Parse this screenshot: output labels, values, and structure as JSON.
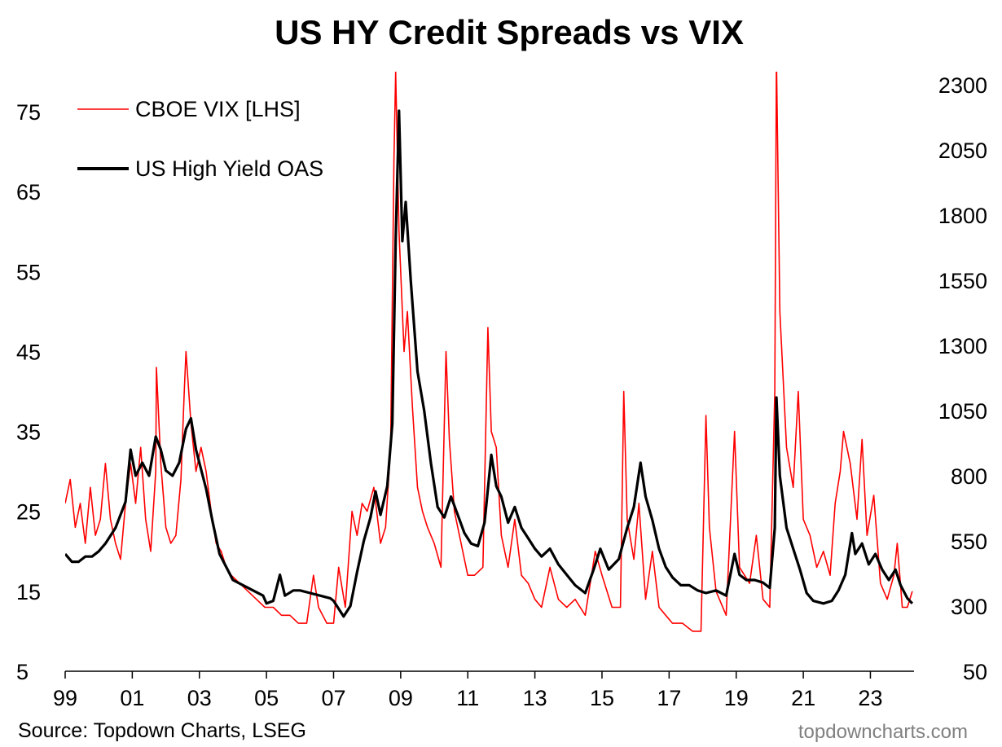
{
  "chart_data": {
    "type": "line",
    "title": "US HY Credit Spreads vs VIX",
    "x_tick_labels": [
      "99",
      "01",
      "03",
      "05",
      "07",
      "09",
      "11",
      "13",
      "15",
      "17",
      "19",
      "21",
      "23"
    ],
    "x_tick_years": [
      1999,
      2001,
      2003,
      2005,
      2007,
      2009,
      2011,
      2013,
      2015,
      2017,
      2019,
      2021,
      2023
    ],
    "x_range": [
      1999.0,
      2024.3
    ],
    "y_left": {
      "label": "",
      "ticks": [
        5,
        15,
        25,
        35,
        45,
        55,
        65,
        75
      ],
      "range": [
        5,
        80
      ]
    },
    "y_right": {
      "label": "",
      "ticks": [
        50,
        300,
        550,
        800,
        1050,
        1300,
        1550,
        1800,
        2050,
        2300
      ],
      "range": [
        50,
        2350
      ]
    },
    "series": [
      {
        "name": "CBOE VIX [LHS]",
        "axis": "left",
        "color": "#ff0000",
        "points": [
          [
            1999.0,
            26
          ],
          [
            1999.15,
            29
          ],
          [
            1999.3,
            23
          ],
          [
            1999.45,
            26
          ],
          [
            1999.6,
            21
          ],
          [
            1999.75,
            28
          ],
          [
            1999.9,
            22
          ],
          [
            2000.05,
            24
          ],
          [
            2000.2,
            31
          ],
          [
            2000.35,
            24
          ],
          [
            2000.5,
            21
          ],
          [
            2000.65,
            19
          ],
          [
            2000.8,
            26
          ],
          [
            2000.95,
            31
          ],
          [
            2001.1,
            26
          ],
          [
            2001.25,
            33
          ],
          [
            2001.4,
            24
          ],
          [
            2001.55,
            20
          ],
          [
            2001.7,
            30
          ],
          [
            2001.72,
            43
          ],
          [
            2001.85,
            31
          ],
          [
            2002.0,
            23
          ],
          [
            2002.15,
            21
          ],
          [
            2002.3,
            22
          ],
          [
            2002.45,
            29
          ],
          [
            2002.55,
            40
          ],
          [
            2002.6,
            45
          ],
          [
            2002.75,
            36
          ],
          [
            2002.9,
            30
          ],
          [
            2003.05,
            33
          ],
          [
            2003.2,
            30
          ],
          [
            2003.35,
            25
          ],
          [
            2003.5,
            21
          ],
          [
            2003.65,
            20
          ],
          [
            2003.8,
            18
          ],
          [
            2003.95,
            17
          ],
          [
            2004.2,
            16
          ],
          [
            2004.45,
            15
          ],
          [
            2004.7,
            14
          ],
          [
            2004.95,
            13
          ],
          [
            2005.2,
            13
          ],
          [
            2005.45,
            12
          ],
          [
            2005.7,
            12
          ],
          [
            2005.95,
            11
          ],
          [
            2006.2,
            11
          ],
          [
            2006.4,
            17
          ],
          [
            2006.55,
            13
          ],
          [
            2006.8,
            11
          ],
          [
            2007.0,
            11
          ],
          [
            2007.15,
            18
          ],
          [
            2007.35,
            13
          ],
          [
            2007.55,
            25
          ],
          [
            2007.7,
            22
          ],
          [
            2007.85,
            26
          ],
          [
            2008.0,
            25
          ],
          [
            2008.2,
            28
          ],
          [
            2008.4,
            21
          ],
          [
            2008.55,
            23
          ],
          [
            2008.7,
            33
          ],
          [
            2008.8,
            69
          ],
          [
            2008.85,
            80
          ],
          [
            2008.95,
            60
          ],
          [
            2009.1,
            45
          ],
          [
            2009.2,
            50
          ],
          [
            2009.35,
            38
          ],
          [
            2009.5,
            28
          ],
          [
            2009.65,
            25
          ],
          [
            2009.8,
            23
          ],
          [
            2010.0,
            21
          ],
          [
            2010.2,
            18
          ],
          [
            2010.35,
            45
          ],
          [
            2010.45,
            34
          ],
          [
            2010.6,
            25
          ],
          [
            2010.8,
            21
          ],
          [
            2011.0,
            17
          ],
          [
            2011.2,
            17
          ],
          [
            2011.45,
            18
          ],
          [
            2011.6,
            48
          ],
          [
            2011.7,
            35
          ],
          [
            2011.85,
            33
          ],
          [
            2012.0,
            22
          ],
          [
            2012.2,
            18
          ],
          [
            2012.4,
            24
          ],
          [
            2012.6,
            17
          ],
          [
            2012.8,
            16
          ],
          [
            2013.0,
            14
          ],
          [
            2013.2,
            13
          ],
          [
            2013.45,
            18
          ],
          [
            2013.7,
            14
          ],
          [
            2013.95,
            13
          ],
          [
            2014.2,
            14
          ],
          [
            2014.5,
            12
          ],
          [
            2014.8,
            20
          ],
          [
            2015.0,
            17
          ],
          [
            2015.3,
            13
          ],
          [
            2015.55,
            13
          ],
          [
            2015.65,
            40
          ],
          [
            2015.75,
            24
          ],
          [
            2015.95,
            19
          ],
          [
            2016.1,
            26
          ],
          [
            2016.3,
            14
          ],
          [
            2016.5,
            20
          ],
          [
            2016.7,
            13
          ],
          [
            2016.9,
            12
          ],
          [
            2017.1,
            11
          ],
          [
            2017.4,
            11
          ],
          [
            2017.7,
            10
          ],
          [
            2017.95,
            10
          ],
          [
            2018.1,
            37
          ],
          [
            2018.2,
            23
          ],
          [
            2018.4,
            15
          ],
          [
            2018.7,
            12
          ],
          [
            2018.95,
            35
          ],
          [
            2019.1,
            18
          ],
          [
            2019.4,
            16
          ],
          [
            2019.6,
            22
          ],
          [
            2019.8,
            14
          ],
          [
            2020.0,
            13
          ],
          [
            2020.15,
            40
          ],
          [
            2020.2,
            82
          ],
          [
            2020.3,
            50
          ],
          [
            2020.5,
            33
          ],
          [
            2020.7,
            28
          ],
          [
            2020.85,
            40
          ],
          [
            2021.0,
            24
          ],
          [
            2021.2,
            22
          ],
          [
            2021.4,
            18
          ],
          [
            2021.6,
            20
          ],
          [
            2021.8,
            17
          ],
          [
            2021.95,
            26
          ],
          [
            2022.1,
            30
          ],
          [
            2022.2,
            35
          ],
          [
            2022.4,
            31
          ],
          [
            2022.6,
            24
          ],
          [
            2022.75,
            34
          ],
          [
            2022.9,
            22
          ],
          [
            2023.1,
            27
          ],
          [
            2023.3,
            16
          ],
          [
            2023.5,
            14
          ],
          [
            2023.7,
            17
          ],
          [
            2023.8,
            21
          ],
          [
            2023.95,
            13
          ],
          [
            2024.1,
            13
          ],
          [
            2024.25,
            15
          ]
        ]
      },
      {
        "name": "US High Yield OAS",
        "axis": "right",
        "color": "#000000",
        "points": [
          [
            1999.0,
            500
          ],
          [
            1999.2,
            470
          ],
          [
            1999.4,
            470
          ],
          [
            1999.6,
            490
          ],
          [
            1999.8,
            490
          ],
          [
            2000.0,
            510
          ],
          [
            2000.2,
            540
          ],
          [
            2000.5,
            600
          ],
          [
            2000.8,
            700
          ],
          [
            2000.95,
            900
          ],
          [
            2001.1,
            800
          ],
          [
            2001.3,
            850
          ],
          [
            2001.5,
            800
          ],
          [
            2001.7,
            950
          ],
          [
            2001.85,
            900
          ],
          [
            2002.0,
            820
          ],
          [
            2002.2,
            800
          ],
          [
            2002.4,
            850
          ],
          [
            2002.6,
            980
          ],
          [
            2002.75,
            1020
          ],
          [
            2002.9,
            900
          ],
          [
            2003.0,
            850
          ],
          [
            2003.2,
            750
          ],
          [
            2003.4,
            620
          ],
          [
            2003.6,
            500
          ],
          [
            2003.8,
            450
          ],
          [
            2004.0,
            400
          ],
          [
            2004.3,
            380
          ],
          [
            2004.6,
            360
          ],
          [
            2004.9,
            340
          ],
          [
            2005.0,
            310
          ],
          [
            2005.2,
            320
          ],
          [
            2005.4,
            420
          ],
          [
            2005.55,
            340
          ],
          [
            2005.8,
            360
          ],
          [
            2006.0,
            360
          ],
          [
            2006.3,
            350
          ],
          [
            2006.6,
            340
          ],
          [
            2006.9,
            330
          ],
          [
            2007.0,
            320
          ],
          [
            2007.3,
            260
          ],
          [
            2007.5,
            300
          ],
          [
            2007.7,
            430
          ],
          [
            2007.9,
            550
          ],
          [
            2008.1,
            640
          ],
          [
            2008.25,
            740
          ],
          [
            2008.4,
            650
          ],
          [
            2008.6,
            760
          ],
          [
            2008.75,
            1000
          ],
          [
            2008.85,
            1700
          ],
          [
            2008.95,
            2200
          ],
          [
            2009.05,
            1700
          ],
          [
            2009.15,
            1850
          ],
          [
            2009.3,
            1550
          ],
          [
            2009.5,
            1200
          ],
          [
            2009.7,
            1050
          ],
          [
            2009.9,
            850
          ],
          [
            2010.1,
            680
          ],
          [
            2010.3,
            640
          ],
          [
            2010.5,
            720
          ],
          [
            2010.7,
            650
          ],
          [
            2010.9,
            580
          ],
          [
            2011.1,
            540
          ],
          [
            2011.3,
            530
          ],
          [
            2011.5,
            620
          ],
          [
            2011.7,
            880
          ],
          [
            2011.85,
            760
          ],
          [
            2012.0,
            720
          ],
          [
            2012.2,
            620
          ],
          [
            2012.4,
            680
          ],
          [
            2012.6,
            600
          ],
          [
            2012.8,
            560
          ],
          [
            2013.0,
            520
          ],
          [
            2013.2,
            490
          ],
          [
            2013.45,
            520
          ],
          [
            2013.7,
            460
          ],
          [
            2013.95,
            420
          ],
          [
            2014.2,
            380
          ],
          [
            2014.5,
            350
          ],
          [
            2014.75,
            440
          ],
          [
            2014.95,
            520
          ],
          [
            2015.2,
            440
          ],
          [
            2015.5,
            480
          ],
          [
            2015.75,
            600
          ],
          [
            2015.95,
            680
          ],
          [
            2016.15,
            850
          ],
          [
            2016.3,
            720
          ],
          [
            2016.5,
            630
          ],
          [
            2016.7,
            520
          ],
          [
            2016.9,
            450
          ],
          [
            2017.1,
            410
          ],
          [
            2017.35,
            380
          ],
          [
            2017.6,
            380
          ],
          [
            2017.85,
            360
          ],
          [
            2018.1,
            350
          ],
          [
            2018.4,
            360
          ],
          [
            2018.7,
            340
          ],
          [
            2018.95,
            500
          ],
          [
            2019.1,
            420
          ],
          [
            2019.3,
            400
          ],
          [
            2019.55,
            400
          ],
          [
            2019.8,
            390
          ],
          [
            2020.0,
            370
          ],
          [
            2020.15,
            600
          ],
          [
            2020.2,
            1100
          ],
          [
            2020.3,
            800
          ],
          [
            2020.5,
            600
          ],
          [
            2020.7,
            520
          ],
          [
            2020.9,
            440
          ],
          [
            2021.1,
            350
          ],
          [
            2021.3,
            320
          ],
          [
            2021.6,
            310
          ],
          [
            2021.85,
            320
          ],
          [
            2022.05,
            360
          ],
          [
            2022.25,
            420
          ],
          [
            2022.45,
            580
          ],
          [
            2022.55,
            500
          ],
          [
            2022.75,
            540
          ],
          [
            2022.95,
            460
          ],
          [
            2023.15,
            500
          ],
          [
            2023.35,
            440
          ],
          [
            2023.55,
            400
          ],
          [
            2023.75,
            440
          ],
          [
            2023.9,
            380
          ],
          [
            2024.1,
            330
          ],
          [
            2024.25,
            310
          ]
        ]
      }
    ],
    "legend": {
      "placement": "top-left",
      "entries": [
        "CBOE VIX [LHS]",
        "US High Yield OAS"
      ]
    },
    "grid": false
  },
  "footer": {
    "source": "Source: Topdown Charts, LSEG",
    "watermark": "topdowncharts.com"
  }
}
